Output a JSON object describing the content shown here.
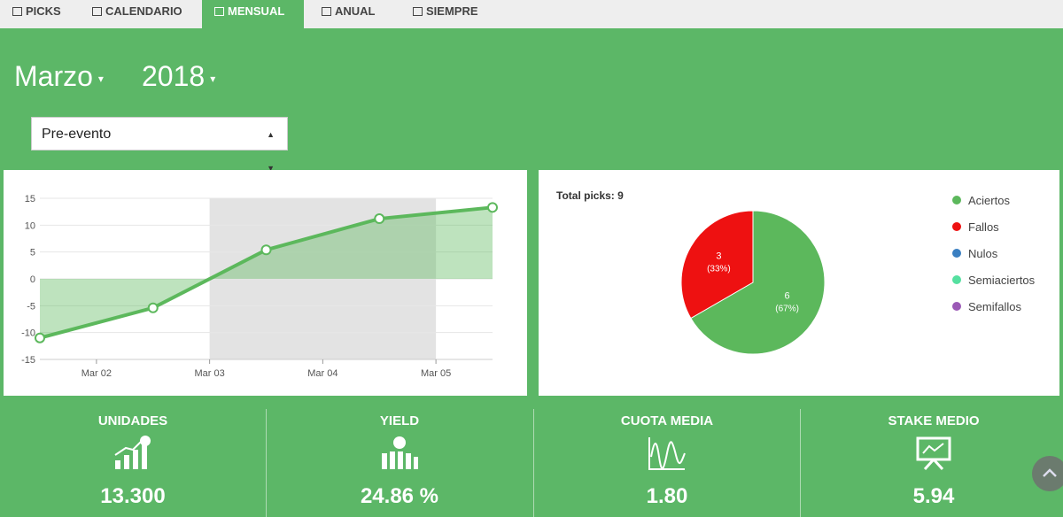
{
  "tabs": [
    "PICKS",
    "CALENDARIO",
    "MENSUAL",
    "ANUAL",
    "SIEMPRE"
  ],
  "active_tab": 2,
  "header": {
    "month": "Marzo",
    "year": "2018"
  },
  "filter": "Pre-evento",
  "chart_data": [
    {
      "type": "line",
      "x": [
        1.5,
        2.5,
        3.5,
        4.5,
        5.5
      ],
      "values": [
        -11,
        -5.4,
        5.4,
        11.2,
        13.3
      ],
      "color": "#5cb85c",
      "xlim": [
        1.5,
        5.5
      ],
      "xticks": [
        {
          "value": 2,
          "label": "Mar 02"
        },
        {
          "value": 3,
          "label": "Mar 03"
        },
        {
          "value": 4,
          "label": "Mar 04"
        },
        {
          "value": 5,
          "label": "Mar 05"
        }
      ],
      "ylim": [
        -15,
        15
      ],
      "yticks": [
        -15,
        -10,
        -5,
        0,
        5,
        10,
        15
      ],
      "grid": true,
      "highlight": [
        3,
        5
      ]
    },
    {
      "type": "pie",
      "title": "Total picks: 9",
      "categories": [
        "Aciertos",
        "Fallos",
        "Nulos",
        "Semiaciertos",
        "Semifallos"
      ],
      "values": [
        6,
        3,
        0,
        0,
        0
      ],
      "percent_labels": [
        "(67%)",
        "(33%)",
        null,
        null,
        null
      ],
      "colors": [
        "#5cb85c",
        "#ee1111",
        "#3a7fc1",
        "#55e0a0",
        "#9b59b6"
      ],
      "legend": "right"
    }
  ],
  "stats": [
    {
      "label": "UNIDADES",
      "value": "13.300"
    },
    {
      "label": "YIELD",
      "value": "24.86 %"
    },
    {
      "label": "CUOTA MEDIA",
      "value": "1.80"
    },
    {
      "label": "STAKE MEDIO",
      "value": "5.94"
    }
  ]
}
